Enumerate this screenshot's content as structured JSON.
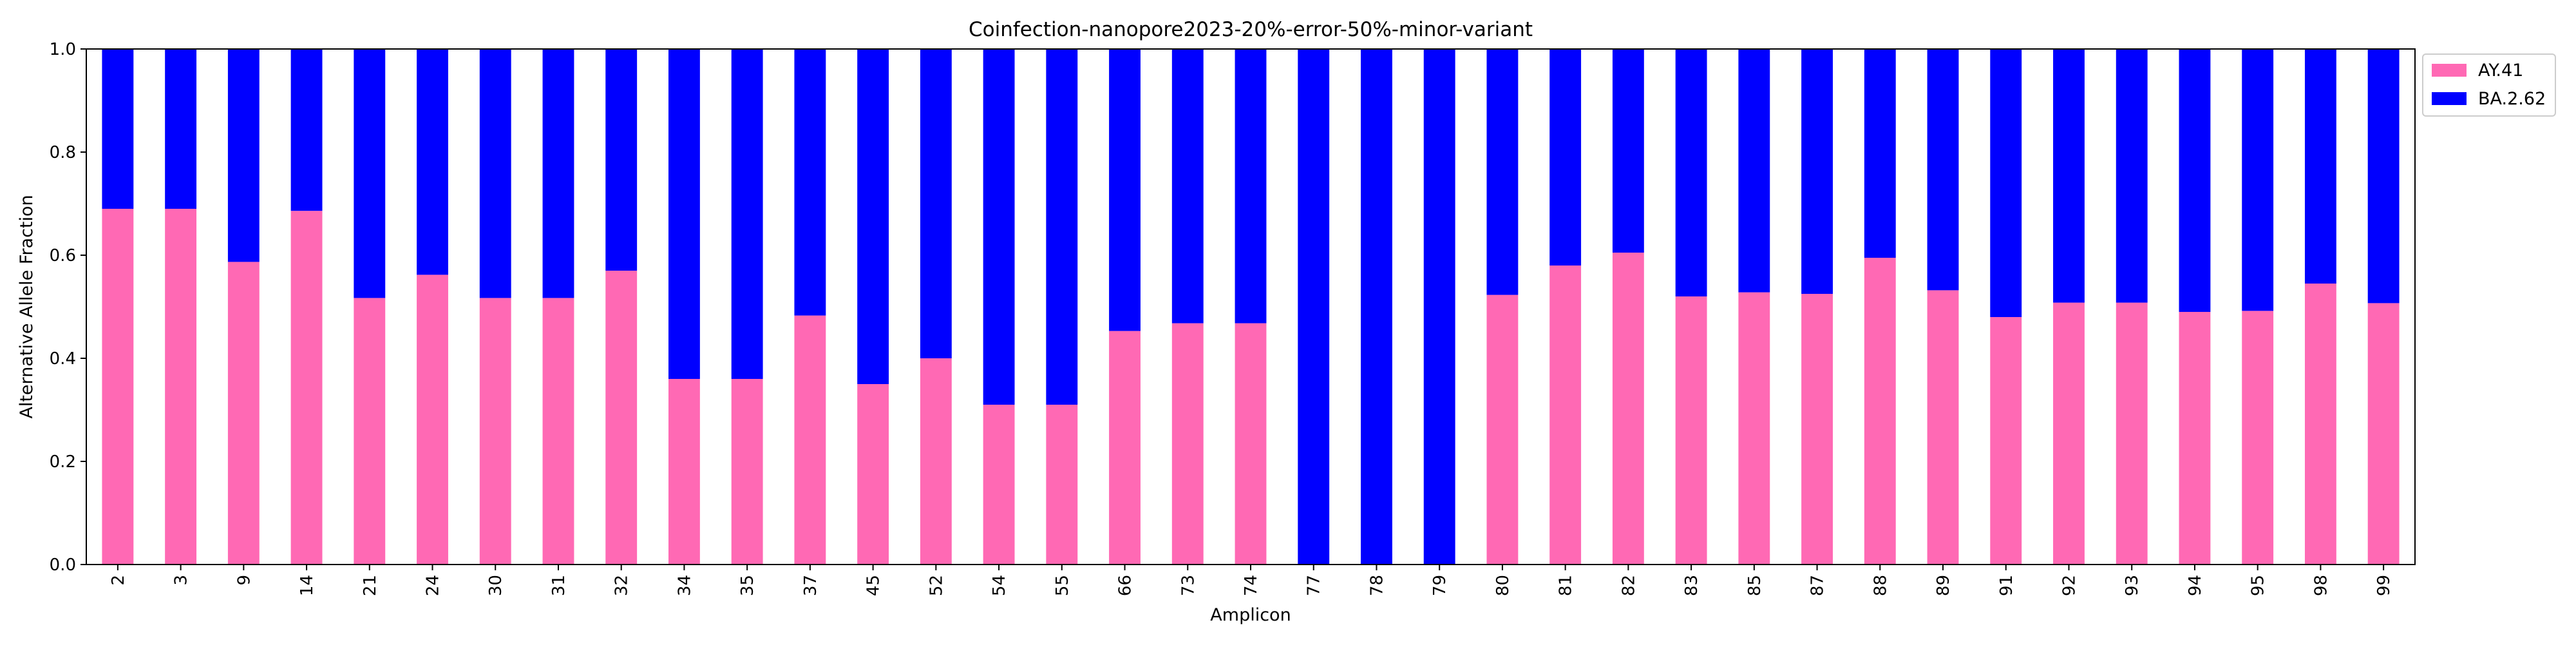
{
  "chart_data": {
    "type": "bar",
    "stacked": true,
    "title": "Coinfection-nanopore2023-20%-error-50%-minor-variant",
    "xlabel": "Amplicon",
    "ylabel": "Alternative Allele Fraction",
    "ylim": [
      0,
      1.0
    ],
    "yticks": [
      "0.0",
      "0.2",
      "0.4",
      "0.6",
      "0.8",
      "1.0"
    ],
    "grid": false,
    "legend_position": "outside-top-right",
    "categories": [
      "2",
      "3",
      "9",
      "14",
      "21",
      "24",
      "30",
      "31",
      "32",
      "34",
      "35",
      "37",
      "45",
      "52",
      "54",
      "55",
      "66",
      "73",
      "74",
      "77",
      "78",
      "79",
      "80",
      "81",
      "82",
      "83",
      "85",
      "87",
      "88",
      "89",
      "91",
      "92",
      "93",
      "94",
      "95",
      "98",
      "99"
    ],
    "series": [
      {
        "name": "AY.41",
        "color": "#ff69b4",
        "values": [
          0.69,
          0.69,
          0.587,
          0.686,
          0.517,
          0.562,
          0.517,
          0.517,
          0.57,
          0.36,
          0.36,
          0.483,
          0.35,
          0.4,
          0.31,
          0.31,
          0.453,
          0.468,
          0.468,
          0,
          0,
          0,
          0.523,
          0.58,
          0.605,
          0.52,
          0.528,
          0.525,
          0.595,
          0.532,
          0.48,
          0.508,
          0.508,
          0.49,
          0.492,
          0.545,
          0.507
        ]
      },
      {
        "name": "BA.2.62",
        "color": "#0000ff",
        "values": [
          0.31,
          0.31,
          0.413,
          0.314,
          0.483,
          0.438,
          0.483,
          0.483,
          0.43,
          0.64,
          0.64,
          0.517,
          0.65,
          0.6,
          0.69,
          0.69,
          0.547,
          0.532,
          0.532,
          1.0,
          1.0,
          1.0,
          0.477,
          0.42,
          0.395,
          0.48,
          0.472,
          0.475,
          0.405,
          0.468,
          0.52,
          0.492,
          0.492,
          0.51,
          0.508,
          0.455,
          0.493
        ]
      }
    ]
  }
}
